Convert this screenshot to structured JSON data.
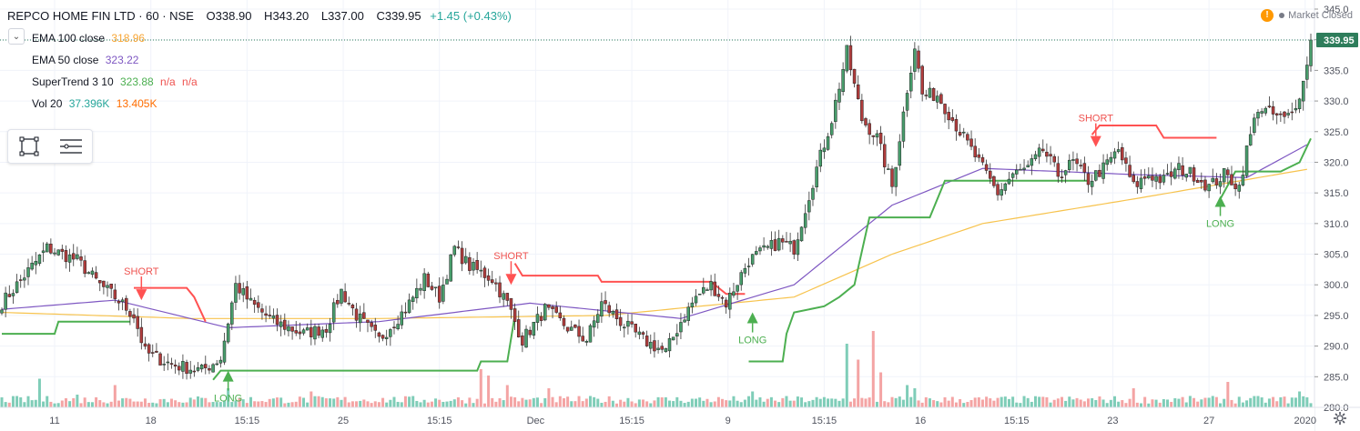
{
  "header": {
    "symbol": "REPCO HOME FIN LTD · 60 · NSE",
    "open_label": "O",
    "open": "338.90",
    "high_label": "H",
    "high": "343.20",
    "low_label": "L",
    "low": "337.00",
    "close_label": "C",
    "close": "339.95",
    "change": "+1.45 (+0.43%)",
    "change_color": "#26a69a"
  },
  "indicators": [
    {
      "label": "EMA 100 close",
      "values": [
        "318.96"
      ],
      "colors": [
        "#f7a534"
      ]
    },
    {
      "label": "EMA 50 close",
      "values": [
        "323.22"
      ],
      "colors": [
        "#7e57c2"
      ]
    },
    {
      "label": "SuperTrend 3 10",
      "values": [
        "323.88",
        "n/a",
        "n/a"
      ],
      "colors": [
        "#4caf50",
        "#ef5350",
        "#ef5350"
      ]
    },
    {
      "label": "Vol 20",
      "values": [
        "37.396K",
        "13.405K"
      ],
      "colors": [
        "#26a69a",
        "#ff6d00"
      ]
    }
  ],
  "status": {
    "market": "Market Closed",
    "warning": "!"
  },
  "colors": {
    "up": "#489e6c",
    "down": "#b03c3c",
    "ema100": "#f7c34d",
    "ema50": "#7e57c2",
    "st_up": "#4caf50",
    "st_down": "#ff5252",
    "vol_up": "#7fcdb8",
    "vol_down": "#f4a4a4",
    "last_price_bg": "#2e7d5b"
  },
  "chart_data": {
    "type": "candlestick",
    "y_axis": {
      "min": 280,
      "max": 345,
      "ticks": [
        345,
        340,
        335,
        330,
        325,
        320,
        315,
        310,
        305,
        300,
        295,
        290,
        285,
        280
      ]
    },
    "x_axis_labels": [
      "11",
      "18",
      "15:15",
      "25",
      "15:15",
      "Dec",
      "15:15",
      "9",
      "15:15",
      "16",
      "15:15",
      "23",
      "27",
      "2020"
    ],
    "last_price": 339.95,
    "last_price_label": "339.95",
    "signals": [
      {
        "type": "SHORT",
        "label": "SHORT"
      },
      {
        "type": "LONG",
        "label": "LONG"
      },
      {
        "type": "SHORT",
        "label": "SHORT"
      },
      {
        "type": "LONG",
        "label": "LONG"
      },
      {
        "type": "SHORT",
        "label": "SHORT"
      },
      {
        "type": "LONG",
        "label": "LONG"
      }
    ],
    "close_anchors": [
      [
        0,
        297
      ],
      [
        8,
        303
      ],
      [
        12,
        306
      ],
      [
        20,
        304
      ],
      [
        26,
        300
      ],
      [
        30,
        298
      ],
      [
        35,
        295
      ],
      [
        38,
        289
      ],
      [
        45,
        287
      ],
      [
        53,
        286
      ],
      [
        58,
        288
      ],
      [
        62,
        300
      ],
      [
        66,
        297
      ],
      [
        72,
        294
      ],
      [
        80,
        292
      ],
      [
        86,
        293
      ],
      [
        90,
        299
      ],
      [
        94,
        295
      ],
      [
        100,
        291
      ],
      [
        104,
        294
      ],
      [
        107,
        296
      ],
      [
        112,
        301
      ],
      [
        116,
        298
      ],
      [
        120,
        306
      ],
      [
        124,
        303
      ],
      [
        130,
        301
      ],
      [
        134,
        297
      ],
      [
        138,
        291
      ],
      [
        144,
        296
      ],
      [
        150,
        293
      ],
      [
        155,
        291
      ],
      [
        159,
        297
      ],
      [
        164,
        294
      ],
      [
        170,
        291
      ],
      [
        176,
        289
      ],
      [
        180,
        294
      ],
      [
        184,
        298
      ],
      [
        188,
        300
      ],
      [
        192,
        297
      ],
      [
        198,
        304
      ],
      [
        206,
        307
      ],
      [
        210,
        306
      ],
      [
        216,
        319
      ],
      [
        220,
        327
      ],
      [
        224,
        338
      ],
      [
        228,
        327
      ],
      [
        232,
        324
      ],
      [
        236,
        316
      ],
      [
        240,
        332
      ],
      [
        242,
        339
      ],
      [
        244,
        331
      ],
      [
        248,
        331
      ],
      [
        252,
        327
      ],
      [
        256,
        323
      ],
      [
        260,
        319
      ],
      [
        264,
        315
      ],
      [
        268,
        318
      ],
      [
        272,
        319
      ],
      [
        276,
        322
      ],
      [
        280,
        318
      ],
      [
        284,
        320
      ],
      [
        288,
        317
      ],
      [
        292,
        319
      ],
      [
        296,
        322
      ],
      [
        300,
        316
      ],
      [
        304,
        318
      ],
      [
        308,
        317
      ],
      [
        312,
        319
      ],
      [
        316,
        318
      ],
      [
        320,
        316
      ],
      [
        324,
        318
      ],
      [
        328,
        316
      ],
      [
        330,
        322
      ],
      [
        333,
        329
      ],
      [
        336,
        328
      ],
      [
        340,
        327
      ],
      [
        342,
        328
      ],
      [
        345,
        333
      ],
      [
        347,
        339.95
      ]
    ],
    "ema100_anchors": [
      [
        0,
        295.5
      ],
      [
        50,
        294.5
      ],
      [
        100,
        294.5
      ],
      [
        160,
        295
      ],
      [
        210,
        298
      ],
      [
        236,
        305
      ],
      [
        260,
        310
      ],
      [
        300,
        314
      ],
      [
        347,
        318.96
      ]
    ],
    "ema50_anchors": [
      [
        0,
        296
      ],
      [
        30,
        297.5
      ],
      [
        60,
        293
      ],
      [
        100,
        294
      ],
      [
        140,
        297
      ],
      [
        180,
        294.5
      ],
      [
        210,
        300
      ],
      [
        236,
        313
      ],
      [
        260,
        319
      ],
      [
        300,
        318
      ],
      [
        330,
        317.5
      ],
      [
        347,
        323.22
      ]
    ],
    "supertrend_segments": [
      {
        "trend": "up",
        "points": [
          [
            0,
            292
          ],
          [
            14,
            292
          ],
          [
            15,
            294
          ],
          [
            34,
            294
          ]
        ]
      },
      {
        "trend": "down",
        "points": [
          [
            35,
            299.5
          ],
          [
            49,
            299.5
          ],
          [
            51,
            298
          ],
          [
            54,
            294
          ]
        ]
      },
      {
        "trend": "up",
        "points": [
          [
            56,
            284.5
          ],
          [
            58,
            286
          ],
          [
            60,
            286
          ],
          [
            126,
            286
          ],
          [
            127,
            287.5
          ],
          [
            134,
            287.5
          ],
          [
            136,
            295
          ]
        ]
      },
      {
        "trend": "down",
        "points": [
          [
            136,
            303.5
          ],
          [
            138,
            301.5
          ],
          [
            158,
            301.5
          ],
          [
            159,
            300.5
          ],
          [
            188,
            300.5
          ],
          [
            192,
            298.5
          ],
          [
            197,
            298.5
          ]
        ]
      },
      {
        "trend": "up",
        "points": [
          [
            198,
            287.5
          ],
          [
            200,
            287.5
          ],
          [
            207,
            287.5
          ],
          [
            208,
            292
          ],
          [
            210,
            295.5
          ],
          [
            218,
            296.5
          ],
          [
            222,
            298
          ],
          [
            226,
            300
          ],
          [
            230,
            311
          ],
          [
            246,
            311
          ],
          [
            250,
            317
          ],
          [
            262,
            317
          ],
          [
            268,
            317
          ],
          [
            286,
            317
          ],
          [
            288,
            317
          ]
        ]
      },
      {
        "trend": "down",
        "points": [
          [
            289,
            324.5
          ],
          [
            291,
            326
          ],
          [
            306,
            326
          ],
          [
            308,
            324
          ],
          [
            322,
            324
          ]
        ]
      },
      {
        "trend": "up",
        "points": [
          [
            323,
            314
          ],
          [
            327,
            318.5
          ],
          [
            339,
            318.5
          ],
          [
            344,
            320
          ],
          [
            347,
            323.88
          ]
        ]
      }
    ],
    "volume_peaks": [
      [
        10,
        0.45
      ],
      [
        20,
        0.2
      ],
      [
        30,
        0.35
      ],
      [
        60,
        0.3
      ],
      [
        82,
        0.25
      ],
      [
        127,
        0.6
      ],
      [
        129,
        0.5
      ],
      [
        134,
        0.35
      ],
      [
        145,
        0.3
      ],
      [
        199,
        0.25
      ],
      [
        224,
        1.0
      ],
      [
        227,
        0.75
      ],
      [
        231,
        1.2
      ],
      [
        233,
        0.55
      ],
      [
        240,
        0.35
      ],
      [
        242,
        0.3
      ],
      [
        300,
        0.3
      ],
      [
        325,
        0.4
      ],
      [
        344,
        0.25
      ]
    ]
  }
}
